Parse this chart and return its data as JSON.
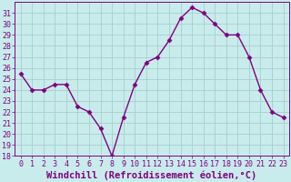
{
  "x": [
    0,
    1,
    2,
    3,
    4,
    5,
    6,
    7,
    8,
    9,
    10,
    11,
    12,
    13,
    14,
    15,
    16,
    17,
    18,
    19,
    20,
    21,
    22,
    23
  ],
  "y": [
    25.5,
    24.0,
    24.0,
    24.5,
    24.5,
    22.5,
    22.0,
    20.5,
    18.0,
    21.5,
    24.5,
    26.5,
    27.0,
    28.5,
    30.5,
    31.5,
    31.0,
    30.0,
    29.0,
    29.0,
    27.0,
    24.0,
    22.0,
    21.5
  ],
  "color": "#800080",
  "bg_color": "#c8ecec",
  "grid_color": "#a8cece",
  "xlabel": "Windchill (Refroidissement éolien,°C)",
  "ylim": [
    18,
    32
  ],
  "xlim": [
    -0.5,
    23.5
  ],
  "yticks": [
    18,
    19,
    20,
    21,
    22,
    23,
    24,
    25,
    26,
    27,
    28,
    29,
    30,
    31
  ],
  "xticks": [
    0,
    1,
    2,
    3,
    4,
    5,
    6,
    7,
    8,
    9,
    10,
    11,
    12,
    13,
    14,
    15,
    16,
    17,
    18,
    19,
    20,
    21,
    22,
    23
  ],
  "linewidth": 1.0,
  "markersize": 2.5,
  "xlabel_fontsize": 7.5,
  "tick_fontsize": 6.0
}
